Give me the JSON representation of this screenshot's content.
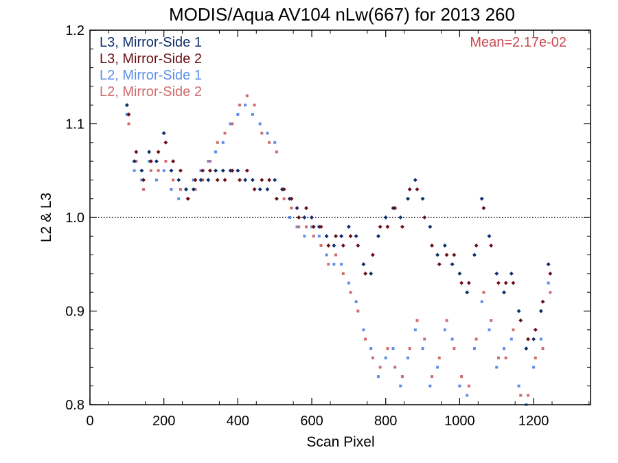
{
  "chart_data": {
    "type": "scatter",
    "title": "MODIS/Aqua AV104 nLw(667) for 2013 260",
    "xlabel": "Scan Pixel",
    "ylabel": "L2 & L3",
    "xlim": [
      0,
      1354
    ],
    "ylim": [
      0.8,
      1.2
    ],
    "x_ticks": [
      "0",
      "200",
      "400",
      "600",
      "800",
      "1000",
      "1200"
    ],
    "y_ticks": [
      "0.8",
      "0.9",
      "1.0",
      "1.1",
      "1.2"
    ],
    "reference_line": 1.0,
    "annotation": "Mean=2.17e-02",
    "annotation_color": "#c8474d",
    "grid": false,
    "legend_position": "top-left",
    "series": [
      {
        "name": "L3, Mirror-Side 1",
        "color": "#0f2e6b",
        "marker": "diamond",
        "points": [
          [
            100,
            1.12
          ],
          [
            120,
            1.06
          ],
          [
            140,
            1.05
          ],
          [
            160,
            1.07
          ],
          [
            180,
            1.06
          ],
          [
            200,
            1.09
          ],
          [
            220,
            1.05
          ],
          [
            240,
            1.04
          ],
          [
            260,
            1.03
          ],
          [
            280,
            1.03
          ],
          [
            300,
            1.04
          ],
          [
            320,
            1.04
          ],
          [
            340,
            1.05
          ],
          [
            360,
            1.05
          ],
          [
            380,
            1.05
          ],
          [
            400,
            1.05
          ],
          [
            420,
            1.04
          ],
          [
            440,
            1.04
          ],
          [
            460,
            1.03
          ],
          [
            480,
            1.03
          ],
          [
            500,
            1.04
          ],
          [
            520,
            1.03
          ],
          [
            540,
            1.02
          ],
          [
            560,
            1.01
          ],
          [
            580,
            1.0
          ],
          [
            600,
            1.0
          ],
          [
            620,
            0.99
          ],
          [
            640,
            0.98
          ],
          [
            660,
            0.97
          ],
          [
            680,
            0.98
          ],
          [
            700,
            0.99
          ],
          [
            720,
            0.98
          ],
          [
            740,
            0.95
          ],
          [
            760,
            0.94
          ],
          [
            780,
            0.98
          ],
          [
            800,
            1.0
          ],
          [
            820,
            1.01
          ],
          [
            840,
            1.0
          ],
          [
            860,
            1.02
          ],
          [
            880,
            1.04
          ],
          [
            900,
            1.02
          ],
          [
            920,
            0.99
          ],
          [
            940,
            0.96
          ],
          [
            960,
            0.97
          ],
          [
            980,
            0.95
          ],
          [
            1000,
            0.94
          ],
          [
            1020,
            0.92
          ],
          [
            1040,
            0.96
          ],
          [
            1060,
            1.02
          ],
          [
            1080,
            0.98
          ],
          [
            1100,
            0.94
          ],
          [
            1120,
            0.92
          ],
          [
            1140,
            0.94
          ],
          [
            1160,
            0.9
          ],
          [
            1180,
            0.86
          ],
          [
            1200,
            0.87
          ],
          [
            1220,
            0.9
          ],
          [
            1240,
            0.95
          ]
        ]
      },
      {
        "name": "L3, Mirror-Side 2",
        "color": "#6b0f16",
        "marker": "diamond",
        "points": [
          [
            105,
            1.11
          ],
          [
            125,
            1.07
          ],
          [
            145,
            1.04
          ],
          [
            165,
            1.06
          ],
          [
            185,
            1.07
          ],
          [
            205,
            1.08
          ],
          [
            225,
            1.06
          ],
          [
            245,
            1.05
          ],
          [
            265,
            1.02
          ],
          [
            285,
            1.04
          ],
          [
            305,
            1.05
          ],
          [
            325,
            1.05
          ],
          [
            345,
            1.04
          ],
          [
            365,
            1.04
          ],
          [
            385,
            1.05
          ],
          [
            405,
            1.04
          ],
          [
            425,
            1.05
          ],
          [
            445,
            1.03
          ],
          [
            465,
            1.04
          ],
          [
            485,
            1.04
          ],
          [
            505,
            1.02
          ],
          [
            525,
            1.03
          ],
          [
            545,
            1.02
          ],
          [
            565,
            1.0
          ],
          [
            585,
            1.01
          ],
          [
            605,
            0.99
          ],
          [
            625,
            0.99
          ],
          [
            645,
            0.97
          ],
          [
            665,
            0.98
          ],
          [
            685,
            0.97
          ],
          [
            705,
            0.98
          ],
          [
            725,
            0.97
          ],
          [
            745,
            0.94
          ],
          [
            765,
            0.96
          ],
          [
            785,
            0.99
          ],
          [
            805,
            0.99
          ],
          [
            825,
            1.01
          ],
          [
            845,
            0.99
          ],
          [
            865,
            1.03
          ],
          [
            885,
            1.03
          ],
          [
            905,
            1.0
          ],
          [
            925,
            0.97
          ],
          [
            945,
            0.95
          ],
          [
            965,
            0.96
          ],
          [
            985,
            0.96
          ],
          [
            1005,
            0.93
          ],
          [
            1025,
            0.93
          ],
          [
            1045,
            0.97
          ],
          [
            1065,
            1.01
          ],
          [
            1085,
            0.97
          ],
          [
            1105,
            0.93
          ],
          [
            1125,
            0.93
          ],
          [
            1145,
            0.93
          ],
          [
            1165,
            0.89
          ],
          [
            1185,
            0.87
          ],
          [
            1205,
            0.88
          ],
          [
            1225,
            0.91
          ],
          [
            1245,
            0.94
          ]
        ]
      },
      {
        "name": "L2, Mirror-Side 1",
        "color": "#5b8fe6",
        "marker": "square",
        "points": [
          [
            100,
            1.11
          ],
          [
            120,
            1.05
          ],
          [
            140,
            1.04
          ],
          [
            160,
            1.06
          ],
          [
            180,
            1.04
          ],
          [
            200,
            1.05
          ],
          [
            220,
            1.03
          ],
          [
            240,
            1.02
          ],
          [
            260,
            1.03
          ],
          [
            280,
            1.04
          ],
          [
            300,
            1.05
          ],
          [
            320,
            1.06
          ],
          [
            340,
            1.07
          ],
          [
            360,
            1.08
          ],
          [
            380,
            1.1
          ],
          [
            400,
            1.11
          ],
          [
            420,
            1.12
          ],
          [
            440,
            1.11
          ],
          [
            460,
            1.1
          ],
          [
            480,
            1.09
          ],
          [
            500,
            1.08
          ],
          [
            520,
            1.03
          ],
          [
            540,
            1.0
          ],
          [
            560,
            0.99
          ],
          [
            580,
            0.98
          ],
          [
            600,
            0.99
          ],
          [
            620,
            0.98
          ],
          [
            640,
            0.96
          ],
          [
            660,
            0.95
          ],
          [
            680,
            0.95
          ],
          [
            700,
            0.93
          ],
          [
            720,
            0.91
          ],
          [
            740,
            0.88
          ],
          [
            760,
            0.86
          ],
          [
            780,
            0.83
          ],
          [
            800,
            0.85
          ],
          [
            820,
            0.86
          ],
          [
            840,
            0.82
          ],
          [
            860,
            0.85
          ],
          [
            880,
            0.88
          ],
          [
            900,
            0.86
          ],
          [
            920,
            0.82
          ],
          [
            940,
            0.84
          ],
          [
            960,
            0.88
          ],
          [
            980,
            0.87
          ],
          [
            1000,
            0.82
          ],
          [
            1020,
            0.81
          ],
          [
            1040,
            0.86
          ],
          [
            1060,
            0.91
          ],
          [
            1080,
            0.88
          ],
          [
            1100,
            0.84
          ],
          [
            1120,
            0.86
          ],
          [
            1140,
            0.87
          ],
          [
            1160,
            0.82
          ],
          [
            1180,
            0.8
          ],
          [
            1200,
            0.84
          ],
          [
            1220,
            0.87
          ],
          [
            1240,
            0.93
          ]
        ]
      },
      {
        "name": "L2, Mirror-Side 2",
        "color": "#d06a6c",
        "marker": "square",
        "points": [
          [
            105,
            1.1
          ],
          [
            125,
            1.06
          ],
          [
            145,
            1.03
          ],
          [
            165,
            1.05
          ],
          [
            185,
            1.05
          ],
          [
            205,
            1.06
          ],
          [
            225,
            1.04
          ],
          [
            245,
            1.03
          ],
          [
            265,
            1.02
          ],
          [
            285,
            1.03
          ],
          [
            305,
            1.04
          ],
          [
            325,
            1.06
          ],
          [
            345,
            1.08
          ],
          [
            365,
            1.09
          ],
          [
            385,
            1.1
          ],
          [
            405,
            1.12
          ],
          [
            425,
            1.13
          ],
          [
            445,
            1.12
          ],
          [
            465,
            1.09
          ],
          [
            485,
            1.08
          ],
          [
            505,
            1.07
          ],
          [
            525,
            1.02
          ],
          [
            545,
            1.01
          ],
          [
            565,
            0.99
          ],
          [
            585,
            0.99
          ],
          [
            605,
            0.98
          ],
          [
            625,
            0.97
          ],
          [
            645,
            0.95
          ],
          [
            665,
            0.96
          ],
          [
            685,
            0.94
          ],
          [
            705,
            0.92
          ],
          [
            725,
            0.9
          ],
          [
            745,
            0.87
          ],
          [
            765,
            0.85
          ],
          [
            785,
            0.84
          ],
          [
            805,
            0.86
          ],
          [
            825,
            0.84
          ],
          [
            845,
            0.83
          ],
          [
            865,
            0.86
          ],
          [
            885,
            0.89
          ],
          [
            905,
            0.87
          ],
          [
            925,
            0.83
          ],
          [
            945,
            0.85
          ],
          [
            965,
            0.89
          ],
          [
            985,
            0.86
          ],
          [
            1005,
            0.83
          ],
          [
            1025,
            0.82
          ],
          [
            1045,
            0.87
          ],
          [
            1065,
            0.92
          ],
          [
            1085,
            0.89
          ],
          [
            1105,
            0.85
          ],
          [
            1125,
            0.85
          ],
          [
            1145,
            0.88
          ],
          [
            1165,
            0.81
          ],
          [
            1185,
            0.81
          ],
          [
            1205,
            0.85
          ],
          [
            1225,
            0.86
          ],
          [
            1245,
            0.92
          ]
        ]
      }
    ]
  }
}
